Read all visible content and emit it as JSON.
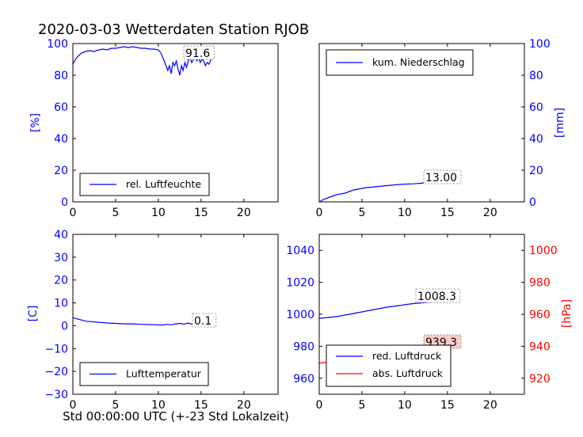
{
  "figure": {
    "title": "2020-03-03 Wetterdaten Station RJOB",
    "xlabel": "Std 00:00:00 UTC (+-23 Std Lokalzeit)"
  },
  "chart_data": [
    {
      "id": "humidity",
      "type": "line",
      "xlim": [
        0,
        24
      ],
      "ylim": [
        0,
        100
      ],
      "x_ticks": [
        "0",
        "5",
        "10",
        "15",
        "20"
      ],
      "y_ticks": [
        "0",
        "20",
        "40",
        "60",
        "80",
        "100"
      ],
      "ylabel": "[%]",
      "legend": "rel. Luftfeuchte",
      "legend_position": "lower-left",
      "annotation": "91.6",
      "series": [
        {
          "name": "rel. Luftfeuchte",
          "color": "#0000ff",
          "x": [
            0,
            0.3,
            0.6,
            1,
            1.5,
            2,
            2.5,
            3,
            3.5,
            4,
            4.5,
            5,
            5.5,
            6,
            6.5,
            7,
            7.5,
            8,
            8.5,
            9,
            9.5,
            10,
            10.3,
            10.6,
            10.9,
            11.1,
            11.3,
            11.5,
            11.7,
            11.9,
            12.1,
            12.3,
            12.5,
            12.7,
            12.9,
            13.1,
            13.3,
            13.5,
            13.7,
            13.9,
            14.1,
            14.3,
            14.5,
            14.7,
            14.9,
            15.1,
            15.3,
            15.5,
            15.7,
            15.9,
            16.1,
            16.2
          ],
          "y": [
            87,
            90,
            92,
            94,
            95,
            95.5,
            95,
            96,
            96.5,
            96,
            97,
            97,
            97.5,
            98,
            97.5,
            98,
            97.5,
            97,
            97,
            96.5,
            96.5,
            96,
            94,
            90,
            86,
            83,
            86,
            81,
            88,
            86,
            89,
            84,
            80,
            86,
            83,
            88,
            85,
            89,
            91,
            88,
            90,
            92,
            89,
            91,
            88,
            90,
            89,
            86,
            88,
            87,
            89,
            91.6
          ]
        }
      ]
    },
    {
      "id": "precipitation",
      "type": "line",
      "xlim": [
        0,
        24
      ],
      "ylim": [
        0,
        100
      ],
      "x_ticks": [
        "0",
        "5",
        "10",
        "15",
        "20"
      ],
      "y_ticks": [
        "0",
        "20",
        "40",
        "60",
        "80",
        "100"
      ],
      "ylabel": "[mm]",
      "legend": "kum. Niederschlag",
      "legend_position": "top-left",
      "annotation": "13.00",
      "series": [
        {
          "name": "kum. Niederschlag",
          "color": "#0000ff",
          "x": [
            0,
            0.5,
            1,
            1.5,
            2,
            2.5,
            3,
            3.5,
            4,
            4.5,
            5,
            5.5,
            6,
            7,
            8,
            9,
            10,
            11,
            12,
            13,
            14,
            15,
            16.2
          ],
          "y": [
            0,
            1.5,
            2.5,
            3.5,
            4.5,
            5,
            5.5,
            6.5,
            7.5,
            8,
            8.5,
            9,
            9.2,
            9.8,
            10.3,
            10.8,
            11.2,
            11.4,
            11.8,
            12.3,
            12.6,
            12.8,
            13.0
          ]
        }
      ]
    },
    {
      "id": "temperature",
      "type": "line",
      "xlim": [
        0,
        24
      ],
      "ylim": [
        -30,
        40
      ],
      "x_ticks": [
        "0",
        "5",
        "10",
        "15",
        "20"
      ],
      "y_ticks": [
        "−30",
        "−20",
        "−10",
        "0",
        "10",
        "20",
        "30",
        "40"
      ],
      "ylabel": "[C]",
      "legend": "Lufttemperatur",
      "legend_position": "lower-left",
      "annotation": "0.1",
      "series": [
        {
          "name": "Lufttemperatur",
          "color": "#0000ff",
          "x": [
            0,
            0.5,
            1,
            1.5,
            2,
            3,
            4,
            5,
            6,
            7,
            8,
            9,
            10,
            10.5,
            11,
            11.5,
            12,
            12.5,
            13,
            13.5,
            14,
            14.5,
            15,
            15.5,
            16,
            16.2
          ],
          "y": [
            3.5,
            3,
            2.5,
            2,
            1.8,
            1.5,
            1.2,
            1,
            0.8,
            0.8,
            0.6,
            0.5,
            0.4,
            0.3,
            0.6,
            0.4,
            0.8,
            1.0,
            0.7,
            1.2,
            0.6,
            1.0,
            0.5,
            0.4,
            0.3,
            0.1
          ]
        }
      ]
    },
    {
      "id": "pressure",
      "type": "line",
      "xlim": [
        0,
        24
      ],
      "ylim_left": [
        950,
        1050
      ],
      "ylim_right": [
        910,
        1010
      ],
      "x_ticks": [
        "0",
        "5",
        "10",
        "15",
        "20"
      ],
      "y_ticks_left": [
        "960",
        "980",
        "1000",
        "1020",
        "1040"
      ],
      "y_ticks_right": [
        "920",
        "940",
        "960",
        "980",
        "1000"
      ],
      "ylabel_right": "[hPa]",
      "legend_position": "lower-left",
      "annotations": [
        "1008.3",
        "939.3"
      ],
      "series": [
        {
          "name": "red. Luftdruck",
          "color": "#0000ff",
          "axis": "left",
          "x": [
            0,
            1,
            2,
            3,
            4,
            5,
            6,
            7,
            8,
            9,
            10,
            11,
            12,
            13,
            14,
            15,
            16.2
          ],
          "y": [
            997.5,
            998,
            998.5,
            999.5,
            1000.5,
            1001.5,
            1002.5,
            1003.5,
            1004.5,
            1005.2,
            1006,
            1006.7,
            1007.2,
            1007.6,
            1007.9,
            1008.1,
            1008.3
          ]
        },
        {
          "name": "abs. Luftdruck",
          "color": "#ff0000",
          "axis": "right",
          "x": [
            0,
            1,
            2,
            3,
            4,
            5,
            6,
            7,
            8,
            9,
            10,
            11,
            12,
            13,
            14,
            15,
            16.2
          ],
          "y": [
            929.5,
            930,
            930.5,
            931.5,
            932.5,
            933.5,
            934.5,
            935.5,
            936.5,
            937.2,
            937.8,
            938.3,
            938.7,
            939.0,
            939.1,
            939.2,
            939.3
          ]
        }
      ]
    }
  ]
}
